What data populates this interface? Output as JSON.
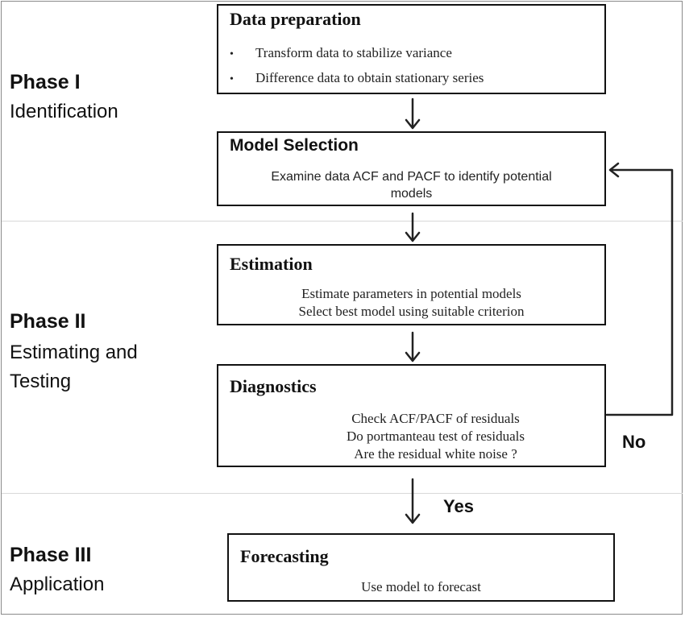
{
  "phases": [
    {
      "title": "Phase I",
      "subtitle_lines": [
        "Identification"
      ]
    },
    {
      "title": "Phase II",
      "subtitle_lines": [
        "Estimating and",
        "Testing"
      ]
    },
    {
      "title": "Phase III",
      "subtitle_lines": [
        "Application"
      ]
    }
  ],
  "boxes": {
    "data_preparation": {
      "title": "Data preparation",
      "bullets": [
        "Transform data to stabilize variance",
        "Difference data to obtain stationary series"
      ]
    },
    "model_selection": {
      "title": "Model Selection",
      "lines": [
        "Examine data ACF and PACF to identify potential",
        "models"
      ]
    },
    "estimation": {
      "title": "Estimation",
      "lines": [
        "Estimate parameters in potential models",
        "Select best model using suitable criterion"
      ]
    },
    "diagnostics": {
      "title": "Diagnostics",
      "lines": [
        "Check ACF/PACF of residuals",
        "Do portmanteau  test of residuals",
        "Are the residual white noise ?"
      ]
    },
    "forecasting": {
      "title": "Forecasting",
      "lines": [
        "Use model to forecast"
      ]
    }
  },
  "edge_labels": {
    "no": "No",
    "yes": "Yes"
  }
}
